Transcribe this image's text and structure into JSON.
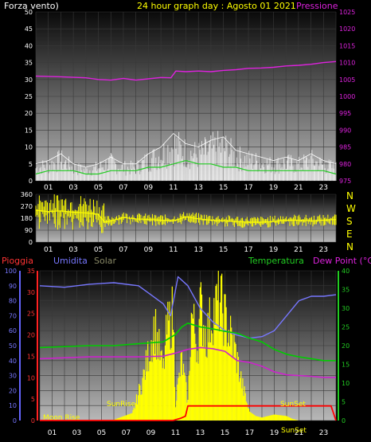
{
  "header": {
    "left_title": "Forza vento)",
    "center_title": "24 hour graph day : Agosto 01 2021",
    "right_title": "Pressione"
  },
  "direction_labels": [
    "N",
    "W",
    "S",
    "E",
    "N"
  ],
  "bottom_header": {
    "pioggia": "Pioggia",
    "umidita": "Umidita",
    "solar": "Solar",
    "temperatura": "Temperatura",
    "dew_point": "Dew Point (°C)"
  },
  "annotations": {
    "sunrise": "SunRise",
    "sunset": "SunSet",
    "moonrise": "Moon Rise",
    "sunset_bottom": "SunSet"
  },
  "colors": {
    "wind": "#ffffff",
    "wind_avg": "#22cc22",
    "pressure": "#dd22dd",
    "direction": "#ffff00",
    "humidity": "#7777ff",
    "rain": "#ff0000",
    "solar": "#ffff00",
    "temperature": "#00cc00",
    "dew_point": "#cc22cc",
    "pioggia_label": "#ff3333",
    "umidita_label": "#7777ff",
    "solar_label": "#888866",
    "temp_label": "#22cc22",
    "dew_label": "#dd22dd"
  },
  "chart_data": [
    {
      "type": "line",
      "x_ticks": [
        "01",
        "03",
        "05",
        "07",
        "09",
        "11",
        "13",
        "15",
        "17",
        "19",
        "21",
        "23"
      ],
      "left_axis": {
        "ticks": [
          "0",
          "5",
          "10",
          "15",
          "20",
          "25",
          "30",
          "35",
          "40",
          "45",
          "50"
        ],
        "ylim": [
          0,
          50
        ]
      },
      "right_axis": {
        "ticks": [
          "975",
          "980",
          "985",
          "990",
          "995",
          "1000",
          "1005",
          "1010",
          "1015",
          "1020",
          "1025"
        ],
        "ylim": [
          975,
          1025
        ]
      },
      "series": [
        {
          "x": [
            0,
            2,
            4,
            5,
            6,
            7,
            8,
            9,
            10,
            10.8,
            11.2,
            12,
            13,
            14,
            15,
            16,
            17,
            18,
            19,
            20,
            21,
            22,
            23,
            24
          ],
          "y": [
            1006,
            1005.8,
            1005.5,
            1005,
            1004.8,
            1005.3,
            1004.8,
            1005.2,
            1005.6,
            1005.5,
            1007.5,
            1007.3,
            1007.5,
            1007.3,
            1007.7,
            1007.9,
            1008.3,
            1008.4,
            1008.6,
            1009,
            1009.2,
            1009.5,
            1010,
            1010.3
          ]
        },
        {
          "x": [
            0,
            1,
            2,
            3,
            4,
            5,
            6,
            7,
            8,
            9,
            10,
            11,
            12,
            13,
            14,
            15,
            16,
            17,
            18,
            19,
            20,
            21,
            22,
            23,
            24
          ],
          "y": [
            2,
            3,
            3,
            3,
            2,
            2,
            3,
            3,
            3,
            4,
            4,
            5,
            6,
            5,
            5,
            4,
            4,
            3,
            3,
            3,
            3,
            3,
            3,
            3,
            2
          ]
        },
        {
          "x": [
            0,
            1,
            2,
            3,
            4,
            5,
            6,
            7,
            8,
            9,
            10,
            11,
            12,
            13,
            14,
            15,
            16,
            17,
            18,
            19,
            20,
            21,
            22,
            23,
            24
          ],
          "y": [
            5,
            6,
            8,
            5,
            4,
            5,
            7,
            5,
            5,
            8,
            10,
            14,
            11,
            10,
            12,
            13,
            9,
            8,
            7,
            6,
            7,
            6,
            8,
            6,
            5
          ]
        }
      ]
    },
    {
      "type": "line",
      "x_ticks": [
        "01",
        "03",
        "05",
        "07",
        "09",
        "11",
        "13",
        "15",
        "17",
        "19",
        "21",
        "23"
      ],
      "y_ticks": [
        "0",
        "90",
        "180",
        "270",
        "360"
      ],
      "ylim": [
        0,
        360
      ],
      "series": [
        {
          "x": [
            0,
            1,
            2,
            3,
            4,
            5,
            5.5,
            6,
            7,
            8,
            9,
            10,
            11,
            12,
            13,
            14,
            15,
            16,
            17,
            18,
            19,
            20,
            21,
            22,
            23,
            24
          ],
          "y": [
            240,
            230,
            235,
            225,
            220,
            210,
            150,
            160,
            185,
            175,
            170,
            165,
            160,
            190,
            175,
            165,
            160,
            155,
            150,
            150,
            155,
            165,
            165,
            160,
            165,
            170
          ]
        }
      ]
    },
    {
      "type": "line",
      "x_ticks": [
        "01",
        "03",
        "05",
        "07",
        "09",
        "11",
        "13",
        "15",
        "17",
        "19",
        "21",
        "23"
      ],
      "left_axis": {
        "ticks": [
          "0",
          "10",
          "20",
          "30",
          "40",
          "50",
          "60",
          "70",
          "80",
          "90",
          "100"
        ],
        "ylim": [
          0,
          100
        ]
      },
      "left_axis2": {
        "ticks": [
          "0",
          "5",
          "10",
          "15",
          "20",
          "25",
          "30",
          "35"
        ],
        "ylim": [
          0,
          35
        ]
      },
      "right_axis": {
        "ticks": [
          "0",
          "5",
          "10",
          "15",
          "20",
          "25",
          "30",
          "35",
          "40"
        ],
        "ylim": [
          0,
          40
        ]
      },
      "series": [
        {
          "x": [
            0,
            2,
            4,
            6,
            8,
            9,
            10,
            10.6,
            11.2,
            12,
            13,
            14,
            15,
            16,
            17,
            18,
            19,
            20,
            21,
            22,
            23,
            24
          ],
          "y": [
            90,
            89,
            91,
            92,
            90,
            84,
            78,
            70,
            96,
            90,
            75,
            66,
            60,
            57,
            55,
            56,
            60,
            70,
            80,
            83,
            83,
            84
          ]
        },
        {
          "x": [
            0,
            4,
            6,
            8,
            10,
            11,
            11.5,
            12,
            13,
            14,
            15,
            16,
            17,
            18,
            19,
            20,
            21,
            22,
            23,
            24
          ],
          "y": [
            19.5,
            20,
            20,
            20.5,
            21,
            23,
            25,
            26,
            25,
            24.5,
            23.8,
            23.3,
            22,
            21,
            19,
            17.7,
            17,
            16.5,
            16,
            16
          ]
        },
        {
          "x": [
            0,
            4,
            6,
            8,
            10,
            11,
            12,
            13,
            14,
            15,
            16,
            17,
            18,
            19,
            20,
            21,
            22,
            23,
            24
          ],
          "y": [
            16.5,
            17,
            17,
            17,
            17.2,
            18,
            19,
            19.5,
            19.2,
            18.5,
            16,
            15.5,
            14.5,
            13,
            12.2,
            12,
            11.8,
            11.5,
            11.5
          ]
        },
        {
          "x": [
            0,
            10.8,
            11.4,
            11.8,
            12,
            22,
            23.6,
            24
          ],
          "y": [
            0,
            0,
            0.5,
            1,
            3.4,
            3.4,
            3.4,
            0
          ]
        },
        {
          "x": [
            0,
            5.3,
            6,
            7.5,
            8.5,
            9.3,
            10,
            10.3,
            10.8,
            11,
            11.5,
            12,
            12.3,
            12.8,
            13,
            13.5,
            14,
            14.6,
            15,
            15.8,
            16.4,
            17,
            17.5,
            18,
            19,
            20,
            20.5,
            21
          ],
          "y": [
            0,
            0,
            0.5,
            5,
            40,
            80,
            40,
            75,
            90,
            15,
            50,
            15,
            90,
            60,
            95,
            70,
            90,
            100,
            85,
            60,
            30,
            6,
            3,
            2,
            4,
            3,
            1,
            0
          ]
        }
      ]
    }
  ]
}
